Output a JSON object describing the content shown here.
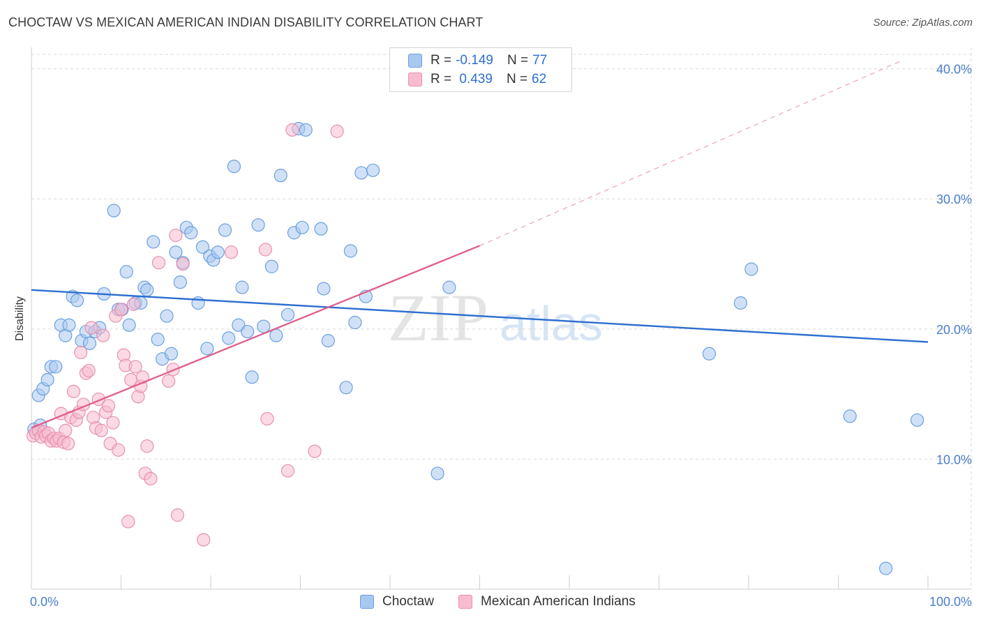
{
  "header": {
    "title": "CHOCTAW VS MEXICAN AMERICAN INDIAN DISABILITY CORRELATION CHART",
    "source": "Source: ZipAtlas.com"
  },
  "watermark": {
    "zip": "ZIP",
    "atlas": "atlas"
  },
  "legend": {
    "r_label": "R =",
    "n_label": "N =",
    "rows": [
      {
        "name": "Choctaw",
        "r": "-0.149",
        "n": "77",
        "color": "#a9c8f0",
        "stroke": "#6a9fe0"
      },
      {
        "name": "Mexican American Indians",
        "r": " 0.439",
        "n": "62",
        "color": "#f7bcd0",
        "stroke": "#e890ae"
      }
    ]
  },
  "chart_data": {
    "type": "scatter",
    "title": "CHOCTAW VS MEXICAN AMERICAN INDIAN DISABILITY CORRELATION CHART",
    "xlabel": "",
    "ylabel": "Disability",
    "xlim": [
      0,
      100
    ],
    "ylim": [
      0,
      41
    ],
    "y_ticks": [
      {
        "value": 10,
        "label": "10.0%"
      },
      {
        "value": 20,
        "label": "20.0%"
      },
      {
        "value": 30,
        "label": "30.0%"
      },
      {
        "value": 40,
        "label": "40.0%"
      }
    ],
    "x_tick_values": [
      0,
      10,
      20,
      30,
      40,
      50,
      60,
      70,
      80,
      90,
      100
    ],
    "x_tick_labels": [
      {
        "value": 0,
        "label": "0.0%"
      },
      {
        "value": 100,
        "label": "100.0%"
      }
    ],
    "grid": true,
    "series": [
      {
        "name": "Choctaw",
        "color": "#6a9fe0",
        "fill": "#a9c8f0",
        "trend": {
          "x0": 0,
          "y0": 23.0,
          "x1": 100,
          "y1": 19.0,
          "color": "#2d6fd0"
        },
        "points": [
          [
            0.3,
            12.3
          ],
          [
            0.8,
            14.9
          ],
          [
            1.3,
            15.4
          ],
          [
            1.8,
            16.1
          ],
          [
            2.2,
            17.1
          ],
          [
            2.7,
            17.1
          ],
          [
            3.3,
            20.3
          ],
          [
            3.8,
            19.5
          ],
          [
            4.2,
            20.3
          ],
          [
            4.6,
            22.5
          ],
          [
            5.1,
            22.2
          ],
          [
            5.6,
            19.1
          ],
          [
            6.1,
            19.8
          ],
          [
            6.5,
            18.9
          ],
          [
            7.1,
            19.8
          ],
          [
            7.6,
            20.1
          ],
          [
            8.1,
            22.7
          ],
          [
            9.2,
            29.1
          ],
          [
            9.7,
            21.5
          ],
          [
            10.1,
            21.5
          ],
          [
            10.6,
            24.4
          ],
          [
            10.9,
            20.3
          ],
          [
            11.6,
            22.0
          ],
          [
            12.2,
            22.0
          ],
          [
            12.6,
            23.2
          ],
          [
            12.9,
            23.0
          ],
          [
            13.6,
            26.7
          ],
          [
            14.1,
            19.2
          ],
          [
            14.6,
            17.7
          ],
          [
            15.1,
            21.0
          ],
          [
            15.6,
            18.1
          ],
          [
            16.1,
            25.9
          ],
          [
            16.6,
            23.6
          ],
          [
            16.9,
            25.1
          ],
          [
            17.3,
            27.8
          ],
          [
            17.8,
            27.4
          ],
          [
            18.6,
            22.0
          ],
          [
            19.1,
            26.3
          ],
          [
            19.6,
            18.5
          ],
          [
            19.9,
            25.6
          ],
          [
            20.3,
            25.3
          ],
          [
            20.8,
            25.9
          ],
          [
            21.6,
            27.6
          ],
          [
            22.0,
            19.3
          ],
          [
            22.6,
            32.5
          ],
          [
            23.1,
            20.3
          ],
          [
            23.5,
            23.2
          ],
          [
            24.1,
            19.8
          ],
          [
            24.6,
            16.3
          ],
          [
            25.3,
            28.0
          ],
          [
            25.9,
            20.2
          ],
          [
            26.8,
            24.8
          ],
          [
            27.3,
            19.5
          ],
          [
            27.8,
            31.8
          ],
          [
            28.6,
            21.1
          ],
          [
            29.3,
            27.4
          ],
          [
            29.8,
            35.4
          ],
          [
            30.2,
            27.8
          ],
          [
            30.6,
            35.3
          ],
          [
            32.3,
            27.7
          ],
          [
            32.6,
            23.1
          ],
          [
            33.1,
            19.1
          ],
          [
            35.1,
            15.5
          ],
          [
            35.6,
            26.0
          ],
          [
            36.1,
            20.5
          ],
          [
            36.8,
            32.0
          ],
          [
            37.3,
            22.5
          ],
          [
            38.1,
            32.2
          ],
          [
            45.3,
            8.9
          ],
          [
            46.6,
            23.2
          ],
          [
            75.6,
            18.1
          ],
          [
            79.1,
            22.0
          ],
          [
            80.3,
            24.6
          ],
          [
            91.3,
            13.3
          ],
          [
            95.3,
            1.6
          ],
          [
            98.8,
            13.0
          ],
          [
            1.0,
            12.6
          ]
        ]
      },
      {
        "name": "Mexican American Indians",
        "color": "#e890ae",
        "fill": "#f7bcd0",
        "trend": {
          "x0": 0,
          "y0": 12.4,
          "x1": 50,
          "y1": 26.4,
          "color": "#e0608e",
          "dash_to": {
            "x": 97,
            "y": 40.6
          }
        },
        "points": [
          [
            0.2,
            11.8
          ],
          [
            0.5,
            12.0
          ],
          [
            0.8,
            12.2
          ],
          [
            1.1,
            11.7
          ],
          [
            1.4,
            12.1
          ],
          [
            1.6,
            11.8
          ],
          [
            1.9,
            12.0
          ],
          [
            2.2,
            11.4
          ],
          [
            2.5,
            11.6
          ],
          [
            2.8,
            11.4
          ],
          [
            3.1,
            11.6
          ],
          [
            3.3,
            13.5
          ],
          [
            3.6,
            11.3
          ],
          [
            3.8,
            12.2
          ],
          [
            4.1,
            11.2
          ],
          [
            4.4,
            13.2
          ],
          [
            4.7,
            15.2
          ],
          [
            5.0,
            13.0
          ],
          [
            5.3,
            13.6
          ],
          [
            5.5,
            18.2
          ],
          [
            5.8,
            14.2
          ],
          [
            6.1,
            16.6
          ],
          [
            6.4,
            16.8
          ],
          [
            6.7,
            20.1
          ],
          [
            6.9,
            13.2
          ],
          [
            7.2,
            12.4
          ],
          [
            7.5,
            14.6
          ],
          [
            7.8,
            12.2
          ],
          [
            8.0,
            19.5
          ],
          [
            8.3,
            13.6
          ],
          [
            8.6,
            14.1
          ],
          [
            8.8,
            11.2
          ],
          [
            9.1,
            12.8
          ],
          [
            9.4,
            21.0
          ],
          [
            9.7,
            10.7
          ],
          [
            10.0,
            21.5
          ],
          [
            10.3,
            18.0
          ],
          [
            10.5,
            17.2
          ],
          [
            10.8,
            5.2
          ],
          [
            11.1,
            16.1
          ],
          [
            11.4,
            21.9
          ],
          [
            11.6,
            17.1
          ],
          [
            11.9,
            14.8
          ],
          [
            12.2,
            15.6
          ],
          [
            12.4,
            16.3
          ],
          [
            12.7,
            8.9
          ],
          [
            12.9,
            11.0
          ],
          [
            13.3,
            8.5
          ],
          [
            14.2,
            25.1
          ],
          [
            15.3,
            16.0
          ],
          [
            15.8,
            16.9
          ],
          [
            16.1,
            27.2
          ],
          [
            16.3,
            5.7
          ],
          [
            16.9,
            25.0
          ],
          [
            19.2,
            3.8
          ],
          [
            22.3,
            25.9
          ],
          [
            26.1,
            26.1
          ],
          [
            26.3,
            13.1
          ],
          [
            28.6,
            9.1
          ],
          [
            29.1,
            35.3
          ],
          [
            31.6,
            10.6
          ],
          [
            34.1,
            35.2
          ]
        ]
      }
    ]
  },
  "bottom_legend": [
    {
      "name": "Choctaw"
    },
    {
      "name": "Mexican American Indians"
    }
  ]
}
